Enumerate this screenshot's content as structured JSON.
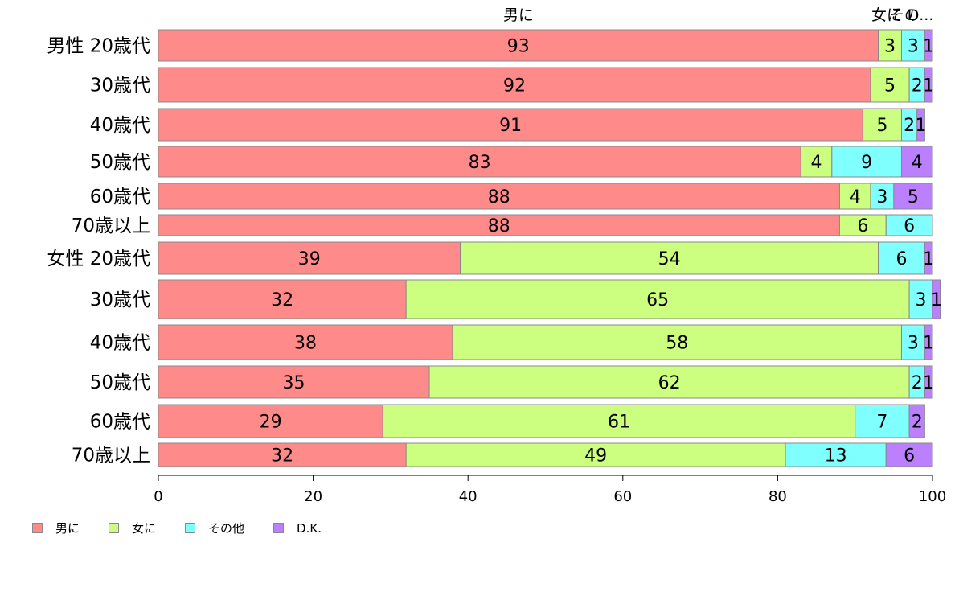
{
  "chart_data": {
    "type": "bar",
    "orientation": "horizontal",
    "stacked": true,
    "categories": [
      "男性 20歳代",
      "30歳代",
      "40歳代",
      "50歳代",
      "60歳代",
      "70歳以上",
      "女性 20歳代",
      "30歳代",
      "40歳代",
      "50歳代",
      "60歳代",
      "70歳以上"
    ],
    "series": [
      {
        "name": "男に",
        "color": "#ff8a8a",
        "values": [
          93,
          92,
          91,
          83,
          88,
          88,
          39,
          32,
          38,
          35,
          29,
          32
        ]
      },
      {
        "name": "女に",
        "color": "#ccff80",
        "values": [
          3,
          5,
          5,
          4,
          4,
          6,
          54,
          65,
          58,
          62,
          61,
          49
        ]
      },
      {
        "name": "その他",
        "color": "#80ffff",
        "values": [
          3,
          2,
          2,
          9,
          3,
          6,
          6,
          3,
          3,
          2,
          7,
          13
        ]
      },
      {
        "name": "D.K.",
        "color": "#bb80ff",
        "values": [
          1,
          1,
          1,
          4,
          5,
          0,
          1,
          1,
          1,
          1,
          2,
          6
        ]
      }
    ],
    "top_labels": [
      "男に",
      "女に",
      "その",
      "D..."
    ],
    "xlim": [
      0,
      100
    ],
    "xticks": [
      0,
      20,
      40,
      60,
      80,
      100
    ],
    "legend_position": "bottom-left",
    "grid": false
  }
}
